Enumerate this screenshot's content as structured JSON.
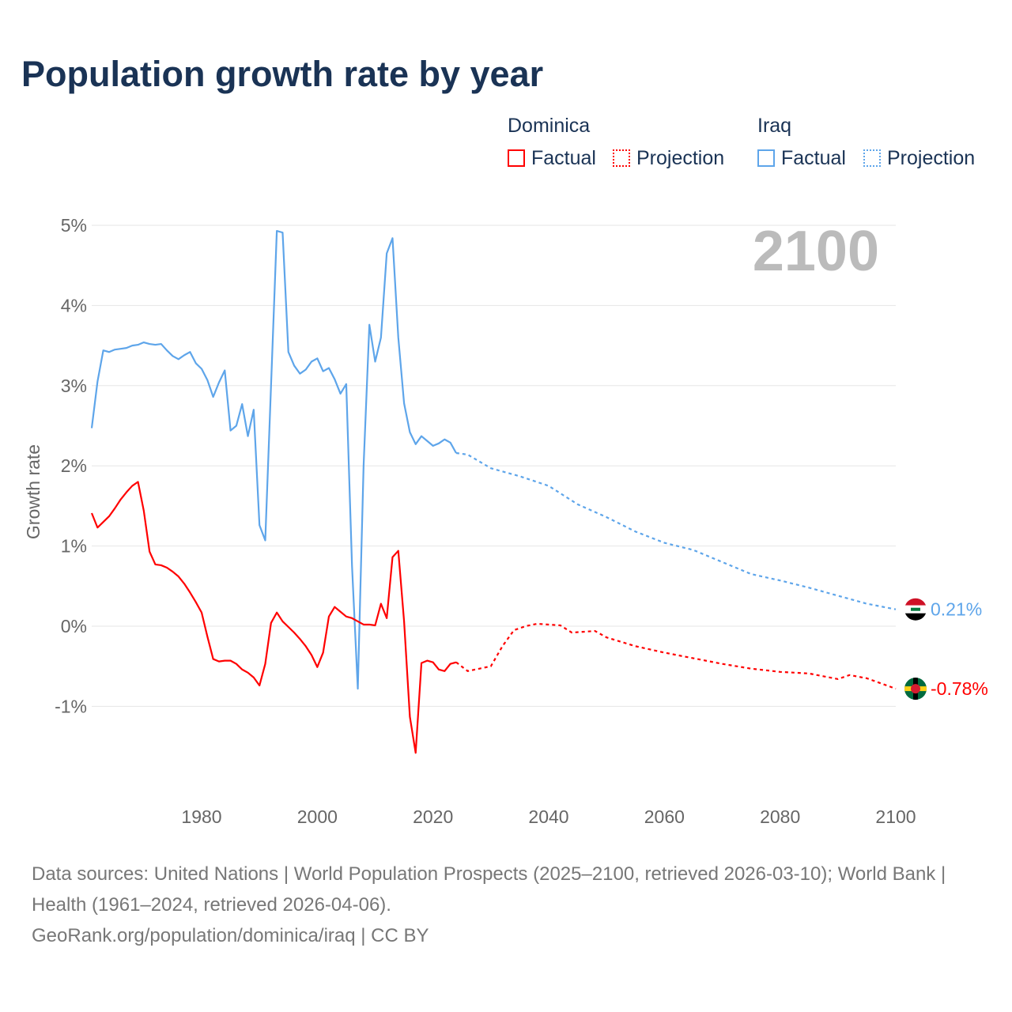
{
  "title": "Population growth rate by year",
  "legend": {
    "groups": [
      {
        "country": "Dominica",
        "factual": "Factual",
        "projection": "Projection",
        "color": "#ff0000"
      },
      {
        "country": "Iraq",
        "factual": "Factual",
        "projection": "Projection",
        "color": "#5ea5ea"
      }
    ]
  },
  "footer": {
    "sources": "Data sources: United Nations | World Population Prospects (2025–2100, retrieved 2026-03-10); World Bank | Health (1961–2024, retrieved 2026-04-06).",
    "credit": "GeoRank.org/population/dominica/iraq | CC BY"
  },
  "chart_data": {
    "type": "line",
    "title": "Population growth rate by year",
    "ylabel": "Growth rate",
    "xlabel": "",
    "year_label": "2100",
    "xlim": [
      1961,
      2100
    ],
    "ylim": [
      -2,
      5
    ],
    "xticks": [
      1980,
      2000,
      2020,
      2040,
      2060,
      2080,
      2100
    ],
    "yticks": [
      {
        "v": -1,
        "label": "-1%"
      },
      {
        "v": 0,
        "label": "0%"
      },
      {
        "v": 1,
        "label": "1%"
      },
      {
        "v": 2,
        "label": "2%"
      },
      {
        "v": 3,
        "label": "3%"
      },
      {
        "v": 4,
        "label": "4%"
      },
      {
        "v": 5,
        "label": "5%"
      }
    ],
    "series": [
      {
        "name": "Iraq",
        "color": "#5ea5ea",
        "end_label": "0.21%",
        "factual_start": 1961,
        "factual": [
          2.47,
          3.05,
          3.44,
          3.42,
          3.45,
          3.46,
          3.47,
          3.5,
          3.51,
          3.54,
          3.52,
          3.51,
          3.52,
          3.44,
          3.37,
          3.33,
          3.38,
          3.42,
          3.28,
          3.21,
          3.07,
          2.86,
          3.04,
          3.19,
          2.44,
          2.5,
          2.77,
          2.37,
          2.7,
          1.26,
          1.07,
          3.0,
          4.93,
          4.91,
          3.42,
          3.25,
          3.15,
          3.2,
          3.3,
          3.34,
          3.18,
          3.22,
          3.08,
          2.9,
          3.02,
          0.75,
          -0.78,
          2.0,
          3.76,
          3.3,
          3.6,
          4.65,
          4.84,
          3.6,
          2.78,
          2.42,
          2.27,
          2.37,
          2.31,
          2.25,
          2.28,
          2.33,
          2.29,
          2.16
        ],
        "projection": [
          [
            2024,
            2.16
          ],
          [
            2026,
            2.14
          ],
          [
            2030,
            1.97
          ],
          [
            2035,
            1.87
          ],
          [
            2040,
            1.75
          ],
          [
            2045,
            1.52
          ],
          [
            2050,
            1.36
          ],
          [
            2055,
            1.18
          ],
          [
            2060,
            1.04
          ],
          [
            2065,
            0.95
          ],
          [
            2070,
            0.8
          ],
          [
            2075,
            0.65
          ],
          [
            2080,
            0.57
          ],
          [
            2085,
            0.48
          ],
          [
            2090,
            0.38
          ],
          [
            2095,
            0.28
          ],
          [
            2100,
            0.21
          ]
        ]
      },
      {
        "name": "Dominica",
        "color": "#ff0000",
        "end_label": "-0.78%",
        "factual_start": 1961,
        "factual": [
          1.41,
          1.23,
          1.3,
          1.37,
          1.47,
          1.58,
          1.67,
          1.75,
          1.8,
          1.44,
          0.93,
          0.77,
          0.76,
          0.73,
          0.68,
          0.62,
          0.53,
          0.42,
          0.3,
          0.17,
          -0.13,
          -0.41,
          -0.44,
          -0.43,
          -0.43,
          -0.47,
          -0.54,
          -0.58,
          -0.64,
          -0.74,
          -0.47,
          0.04,
          0.17,
          0.06,
          -0.01,
          -0.08,
          -0.16,
          -0.25,
          -0.36,
          -0.51,
          -0.33,
          0.12,
          0.24,
          0.18,
          0.12,
          0.1,
          0.06,
          0.02,
          0.02,
          0.01,
          0.28,
          0.1,
          0.86,
          0.94,
          0.06,
          -1.13,
          -1.58,
          -0.46,
          -0.43,
          -0.45,
          -0.54,
          -0.56,
          -0.47,
          -0.45
        ],
        "projection": [
          [
            2024,
            -0.45
          ],
          [
            2026,
            -0.56
          ],
          [
            2030,
            -0.5
          ],
          [
            2032,
            -0.25
          ],
          [
            2034,
            -0.05
          ],
          [
            2036,
            0.0
          ],
          [
            2038,
            0.03
          ],
          [
            2040,
            0.02
          ],
          [
            2042,
            0.01
          ],
          [
            2044,
            -0.08
          ],
          [
            2048,
            -0.06
          ],
          [
            2050,
            -0.14
          ],
          [
            2055,
            -0.25
          ],
          [
            2060,
            -0.33
          ],
          [
            2065,
            -0.4
          ],
          [
            2070,
            -0.47
          ],
          [
            2075,
            -0.53
          ],
          [
            2080,
            -0.57
          ],
          [
            2085,
            -0.59
          ],
          [
            2090,
            -0.66
          ],
          [
            2092,
            -0.61
          ],
          [
            2095,
            -0.65
          ],
          [
            2100,
            -0.78
          ]
        ]
      }
    ]
  }
}
